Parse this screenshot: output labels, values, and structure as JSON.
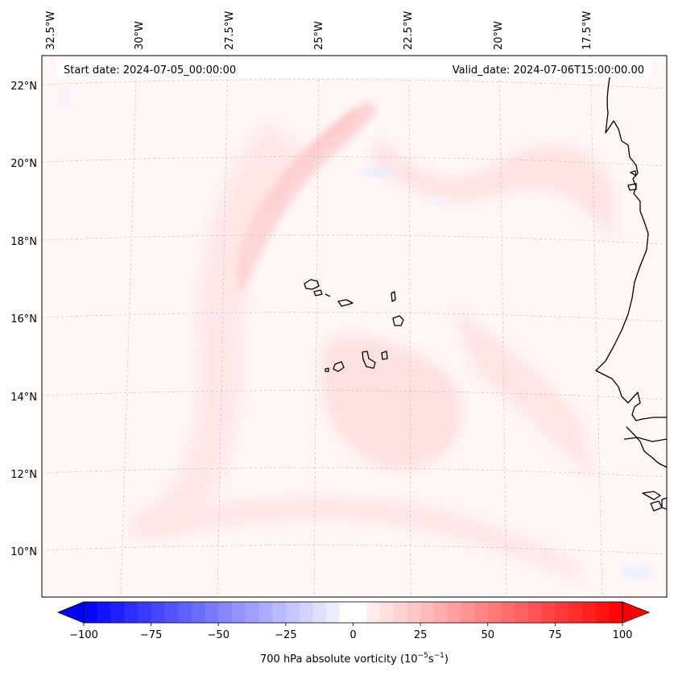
{
  "map": {
    "start_date_label": "Start date: 2024-07-05_00:00:00",
    "valid_date_label": "Valid_date: 2024-07-06T15:00:00.00",
    "longitude_labels": [
      "32.5°W",
      "30°W",
      "27.5°W",
      "25°W",
      "22.5°W",
      "20°W",
      "17.5°W"
    ],
    "latitude_labels": [
      "22°N",
      "20°N",
      "18°N",
      "16°N",
      "14°N",
      "12°N",
      "10°N"
    ],
    "features": [
      "Cabo Verde islands",
      "West African coastline"
    ]
  },
  "colorbar": {
    "label": "700 hPa absolute vorticity (10",
    "label_exp1": "−5",
    "label_mid": "s",
    "label_exp2": "−1",
    "label_end": ")",
    "ticks": [
      "−100",
      "−75",
      "−50",
      "−25",
      "0",
      "25",
      "50",
      "75",
      "100"
    ],
    "range": [
      -100,
      100
    ],
    "levels": 40,
    "colormap": "bwr"
  },
  "colors": {
    "field_background": "#fff6f6",
    "field_light": "#ffe8e8",
    "field_mid": "#ffd9d9",
    "field_strong": "#ffc9c9",
    "negative_tint": "#eef2ff",
    "coast": "#000000",
    "grid": "#bbbbbb"
  }
}
